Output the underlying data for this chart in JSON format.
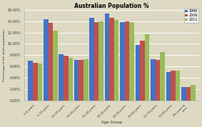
{
  "title": "Australian Population %",
  "xlabel": "Age Group",
  "ylabel": "Percentage of the whole population",
  "categories": [
    "0-4 years",
    "5-14 years",
    "15-19 years",
    "20-24 years",
    "25-34 years",
    "35-44 years",
    "45-54 years",
    "55-64 years",
    "65-74 years",
    "75-84 years",
    "85 years &\nover"
  ],
  "series": {
    "1996": [
      7.0,
      14.4,
      8.2,
      7.2,
      14.6,
      15.3,
      13.9,
      9.8,
      7.3,
      5.0,
      2.3
    ],
    "2006": [
      6.7,
      13.7,
      7.9,
      7.1,
      13.8,
      14.6,
      14.0,
      10.6,
      7.2,
      5.3,
      2.4
    ],
    "2011": [
      6.5,
      12.3,
      7.5,
      7.3,
      14.0,
      14.2,
      13.9,
      11.7,
      8.5,
      5.2,
      2.8
    ]
  },
  "colors": {
    "1996": "#4472c4",
    "2006": "#c0504d",
    "2011": "#9bbb59"
  },
  "legend_labels": [
    "1996",
    "2006",
    "2011"
  ],
  "ylim": [
    0,
    16
  ],
  "yticks": [
    0,
    2,
    4,
    6,
    8,
    10,
    12,
    14,
    16
  ],
  "background_color": "#ddd9c3",
  "plot_bg_color": "#ddd9c3",
  "grid_color": "#ffffff"
}
